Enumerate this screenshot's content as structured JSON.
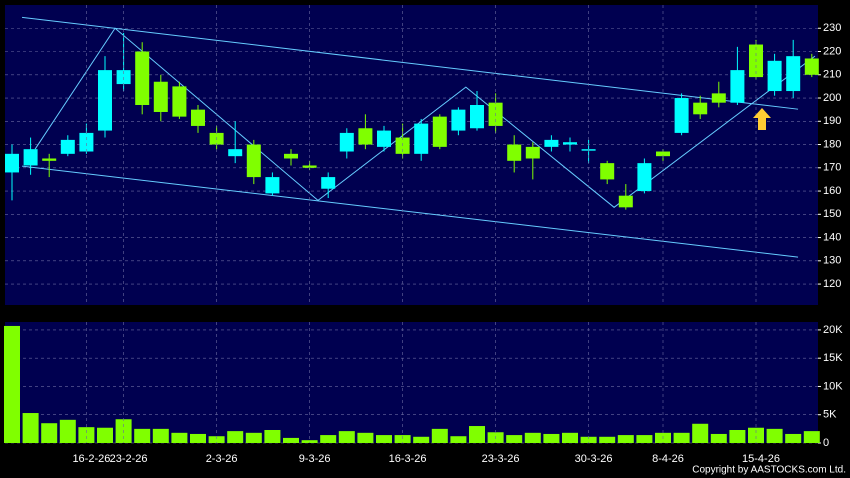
{
  "chart_data": [
    {
      "type": "candlestick",
      "up_color": "#00ffff",
      "down_color": "#80ff00",
      "open": [
        168,
        171,
        174,
        176,
        177,
        186,
        206,
        220,
        207,
        205,
        195,
        185,
        175,
        180,
        159,
        176,
        171,
        161,
        177,
        187,
        179,
        183,
        176,
        192,
        186,
        187,
        198,
        180,
        179,
        179,
        180,
        178,
        172,
        158,
        160,
        177,
        185,
        198,
        202,
        198,
        223,
        203,
        203,
        217
      ],
      "high": [
        180,
        183,
        176,
        184,
        189,
        218,
        228,
        224,
        210,
        207,
        197,
        188,
        190,
        182,
        168,
        178,
        173,
        168,
        187,
        193,
        188,
        189,
        191,
        193,
        196,
        203,
        202,
        184,
        181,
        184,
        183,
        182,
        173,
        163,
        174,
        178,
        202,
        201,
        207,
        222,
        225,
        219,
        225,
        219
      ],
      "low": [
        156,
        167,
        166,
        175,
        176,
        183,
        203,
        193,
        190,
        191,
        185,
        178,
        172,
        163,
        158,
        171,
        169,
        157,
        174,
        178,
        177,
        174,
        173,
        178,
        184,
        186,
        185,
        168,
        165,
        177,
        177,
        172,
        163,
        152,
        159,
        173,
        184,
        191,
        196,
        197,
        208,
        201,
        200,
        209
      ],
      "close": [
        176,
        178,
        173,
        182,
        185,
        212,
        212,
        197,
        194,
        192,
        188,
        180,
        178,
        166,
        166,
        174,
        170,
        166,
        185,
        180,
        186,
        176,
        189,
        179,
        195,
        197,
        188,
        173,
        174,
        182,
        181,
        178,
        165,
        153,
        172,
        175,
        200,
        193,
        198,
        212,
        209,
        216,
        218,
        210
      ],
      "ylim": [
        111,
        240
      ],
      "yticks": [
        120,
        130,
        140,
        150,
        160,
        170,
        180,
        190,
        200,
        210,
        220,
        230
      ],
      "grid": true,
      "lines": [
        {
          "color": "#66ccff",
          "points": [
            [
              0.54,
              234.7
            ],
            [
              42.26,
              195.2
            ]
          ]
        },
        {
          "color": "#66ccff",
          "points": [
            [
              0.54,
              170.7
            ],
            [
              42.26,
              131.6
            ]
          ]
        },
        {
          "color": "#66ccff",
          "points": [
            [
              1.24,
              178
            ],
            [
              5.54,
              230
            ],
            [
              16.45,
              156
            ],
            [
              24.4,
              204.7
            ],
            [
              32.37,
              153
            ],
            [
              43.17,
              218
            ]
          ]
        }
      ]
    },
    {
      "type": "bar",
      "categories": [
        null,
        null,
        null,
        null,
        "16-2-26",
        null,
        "23-2-26",
        null,
        null,
        null,
        null,
        "2-3-26",
        null,
        null,
        null,
        null,
        "9-3-26",
        null,
        null,
        null,
        null,
        "16-3-26",
        null,
        null,
        null,
        null,
        "23-3-26",
        null,
        null,
        null,
        null,
        "30-3-26",
        null,
        null,
        null,
        "8-4-26",
        null,
        null,
        null,
        null,
        "15-4-26",
        null,
        null,
        null
      ],
      "values": [
        20700,
        5300,
        3500,
        4100,
        2800,
        2700,
        4200,
        2500,
        2500,
        1800,
        1600,
        1200,
        2100,
        1800,
        2300,
        900,
        500,
        1400,
        2100,
        1800,
        1400,
        1400,
        1100,
        2500,
        1200,
        3000,
        1900,
        1400,
        1800,
        1600,
        1800,
        1100,
        1100,
        1400,
        1400,
        1800,
        1800,
        3400,
        1600,
        2300,
        2700,
        2500,
        1600,
        2100
      ],
      "color": "#80ff00",
      "ylim": [
        0,
        21400
      ],
      "yticks": [
        0,
        {
          "value": 5000,
          "label": "5K"
        },
        {
          "value": 10000,
          "label": "10K"
        },
        {
          "value": 15000,
          "label": "15K"
        },
        {
          "value": 20000,
          "label": "20K"
        }
      ],
      "grid": true
    }
  ],
  "footer": "Copyright by AASTOCKS.com Ltd."
}
